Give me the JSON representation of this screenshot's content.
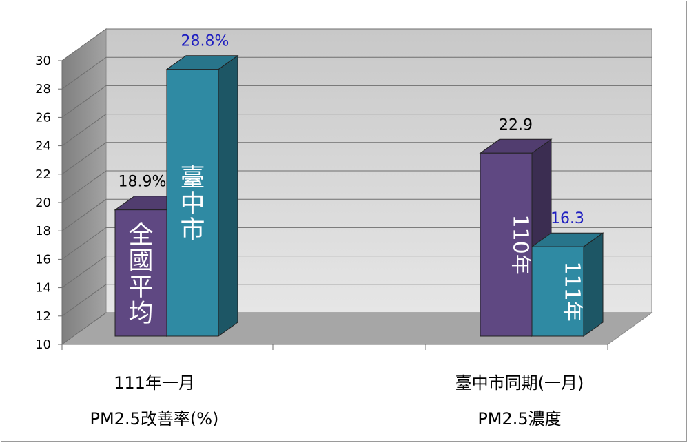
{
  "chart_data": {
    "type": "bar",
    "style": "3d-clustered-column",
    "ylim": [
      10,
      30
    ],
    "yticks": [
      10,
      12,
      14,
      16,
      18,
      20,
      22,
      24,
      26,
      28,
      30
    ],
    "grid": true,
    "groups": [
      {
        "label_line1": "111年一月",
        "label_line2": "PM2.5改善率(%)",
        "bars": [
          {
            "inside_label": "全國平均",
            "value": 18.9,
            "data_label": "18.9%",
            "color": "#5f4882"
          },
          {
            "inside_label": "臺中市",
            "value": 28.8,
            "data_label": "28.8%",
            "color": "#2f8aa3"
          }
        ]
      },
      {
        "label_line1": "臺中市同期(一月)",
        "label_line2": "PM2.5濃度",
        "bars": [
          {
            "inside_label": "110年",
            "value": 22.9,
            "data_label": "22.9",
            "color": "#5f4882"
          },
          {
            "inside_label": "111年",
            "value": 16.3,
            "data_label": "16.3",
            "color": "#2f8aa3"
          }
        ]
      }
    ],
    "colors": {
      "purple": "#5f4882",
      "teal": "#2f8aa3",
      "wall": "#d9d9d9",
      "floor": "#a6a6a6",
      "side_wall": "#8c8c8c",
      "label_black": "#000000",
      "label_blue": "#1f1fc0"
    }
  }
}
